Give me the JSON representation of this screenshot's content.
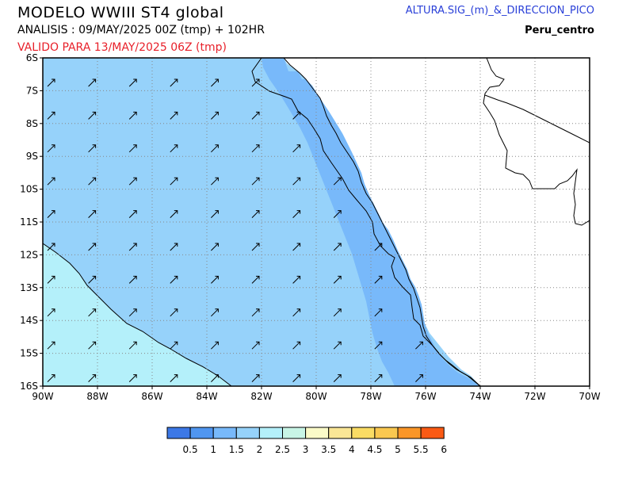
{
  "header": {
    "title": "MODELO  WWIII  ST4  global",
    "analysis": "ANALISIS : 09/MAY/2025 00Z   (tmp) + 102HR",
    "valid": "VALIDO PARA  13/MAY/2025 06Z  (tmp)",
    "product": "ALTURA.SIG_(m)_&_DIRECCION_PICO",
    "region": "Peru_centro"
  },
  "map": {
    "lon_range": [
      -90,
      -70
    ],
    "lat_range": [
      -16,
      -6
    ],
    "x_tick_labels": [
      "90W",
      "88W",
      "86W",
      "84W",
      "82W",
      "80W",
      "78W",
      "76W",
      "74W",
      "72W",
      "70W"
    ],
    "y_tick_labels": [
      "6S",
      "7S",
      "8S",
      "9S",
      "10S",
      "11S",
      "12S",
      "13S",
      "14S",
      "15S",
      "16S"
    ],
    "grid": "dotted",
    "wave_direction_arrows": "northeast",
    "colors": {
      "ocean_1_5_to_2": "#96d2fa",
      "ocean_2_to_2_5": "#b4f0fa",
      "coastal_1_to_1_5": "#78b9fa",
      "land": "#ffffff"
    }
  },
  "colorbar": {
    "labels": [
      "0.5",
      "1",
      "1.5",
      "2",
      "2.5",
      "3",
      "3.5",
      "4",
      "4.5",
      "5",
      "5.5",
      "6"
    ],
    "colors": [
      "#3c78e6",
      "#5096f0",
      "#78b9fa",
      "#96d2fa",
      "#b4f0fa",
      "#c8f5e6",
      "#fafac8",
      "#fae696",
      "#fadc64",
      "#fac850",
      "#fa9628",
      "#fa5a14"
    ]
  }
}
